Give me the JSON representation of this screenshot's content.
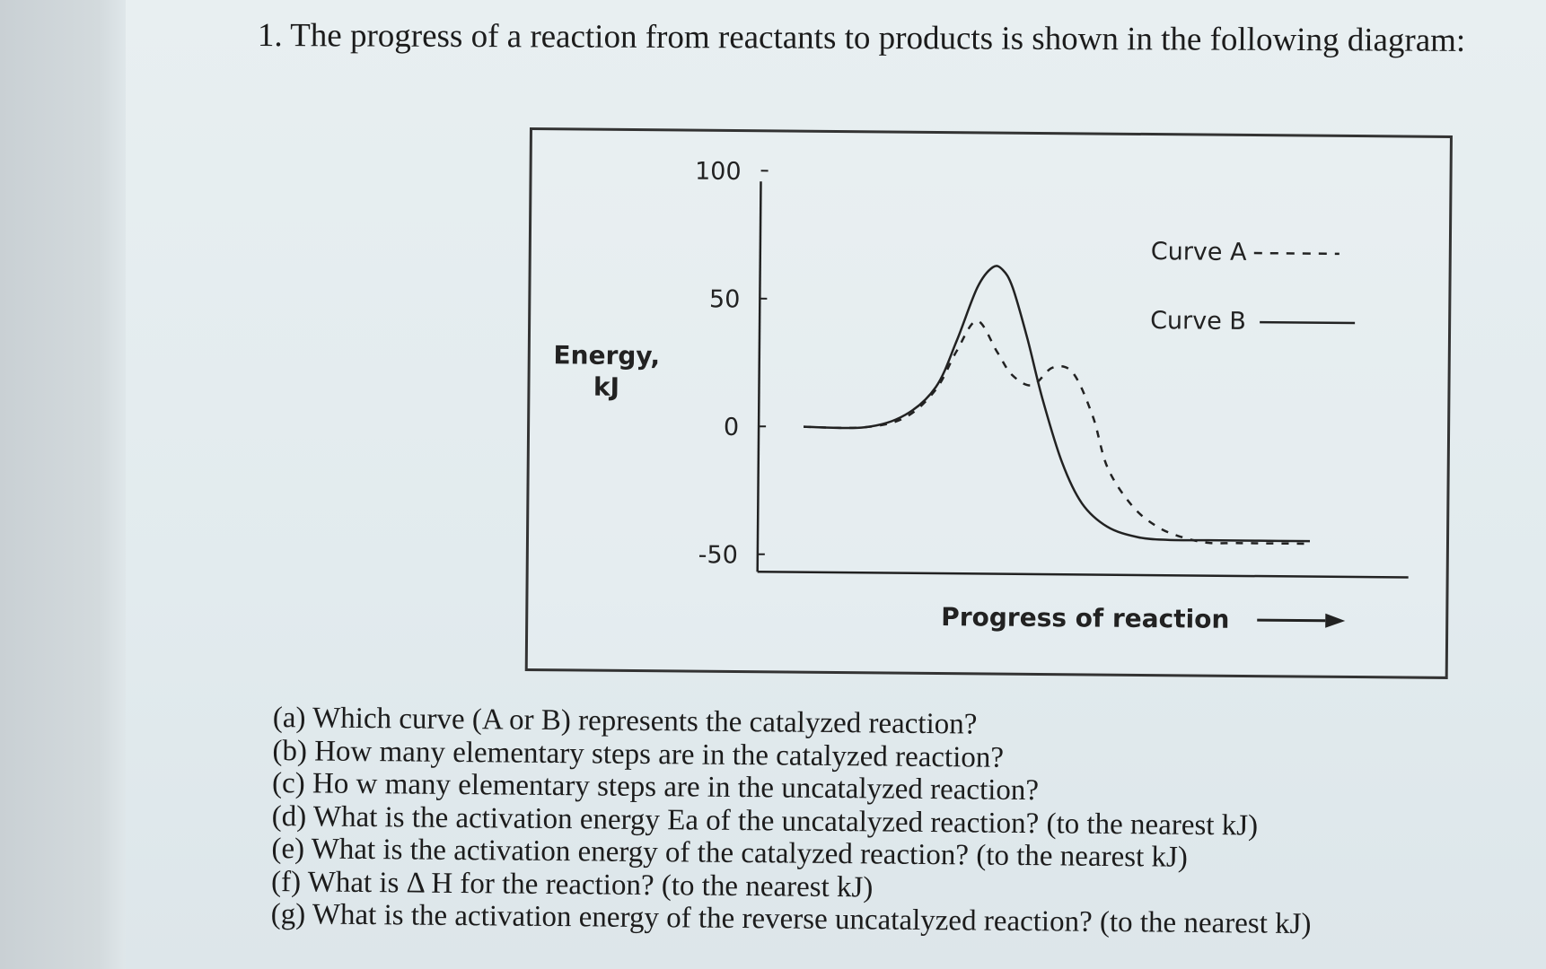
{
  "question": "1. The progress of a reaction from reactants to products is shown in the following diagram:",
  "chart_data": {
    "type": "line",
    "ylabel_line1": "Energy,",
    "ylabel_line2": "kJ",
    "xlabel": "Progress of reaction",
    "yticks": [
      "100",
      "50",
      "0",
      "-50"
    ],
    "ylim": [
      -50,
      100
    ],
    "series": [
      {
        "name": "Curve A",
        "style": "dashed",
        "x": [
          0,
          12,
          20,
          26,
          30,
          34,
          38,
          41,
          45,
          49,
          53,
          57,
          60,
          65,
          70,
          75,
          80,
          85,
          90,
          100
        ],
        "y": [
          0,
          0,
          4,
          15,
          30,
          42,
          30,
          21,
          17,
          24,
          22,
          5,
          -15,
          -30,
          -38,
          -42,
          -44,
          -44,
          -44,
          -44
        ]
      },
      {
        "name": "Curve B",
        "style": "solid",
        "x": [
          0,
          12,
          20,
          26,
          30,
          34,
          37,
          39,
          41,
          44,
          47,
          51,
          55,
          60,
          66,
          72,
          80,
          90,
          100
        ],
        "y": [
          0,
          0,
          5,
          16,
          34,
          55,
          63,
          62,
          55,
          35,
          12,
          -13,
          -29,
          -38,
          -42,
          -43,
          -43,
          -43,
          -43
        ]
      }
    ]
  },
  "legend": {
    "a_label": "Curve A",
    "b_label": "Curve B"
  },
  "parts": [
    "(a) Which curve (A or B) represents the catalyzed reaction?",
    "(b) How many elementary steps are in the catalyzed reaction?",
    "(c) Ho w many elementary steps are in the uncatalyzed reaction?",
    "(d) What is the activation energy Ea of the uncatalyzed reaction? (to the nearest kJ)",
    "(e) What is the activation energy of the catalyzed reaction? (to the nearest kJ)",
    "(f) What is Δ H for the reaction? (to the nearest kJ)",
    "(g) What is the activation energy of the reverse uncatalyzed reaction? (to the nearest kJ)"
  ]
}
